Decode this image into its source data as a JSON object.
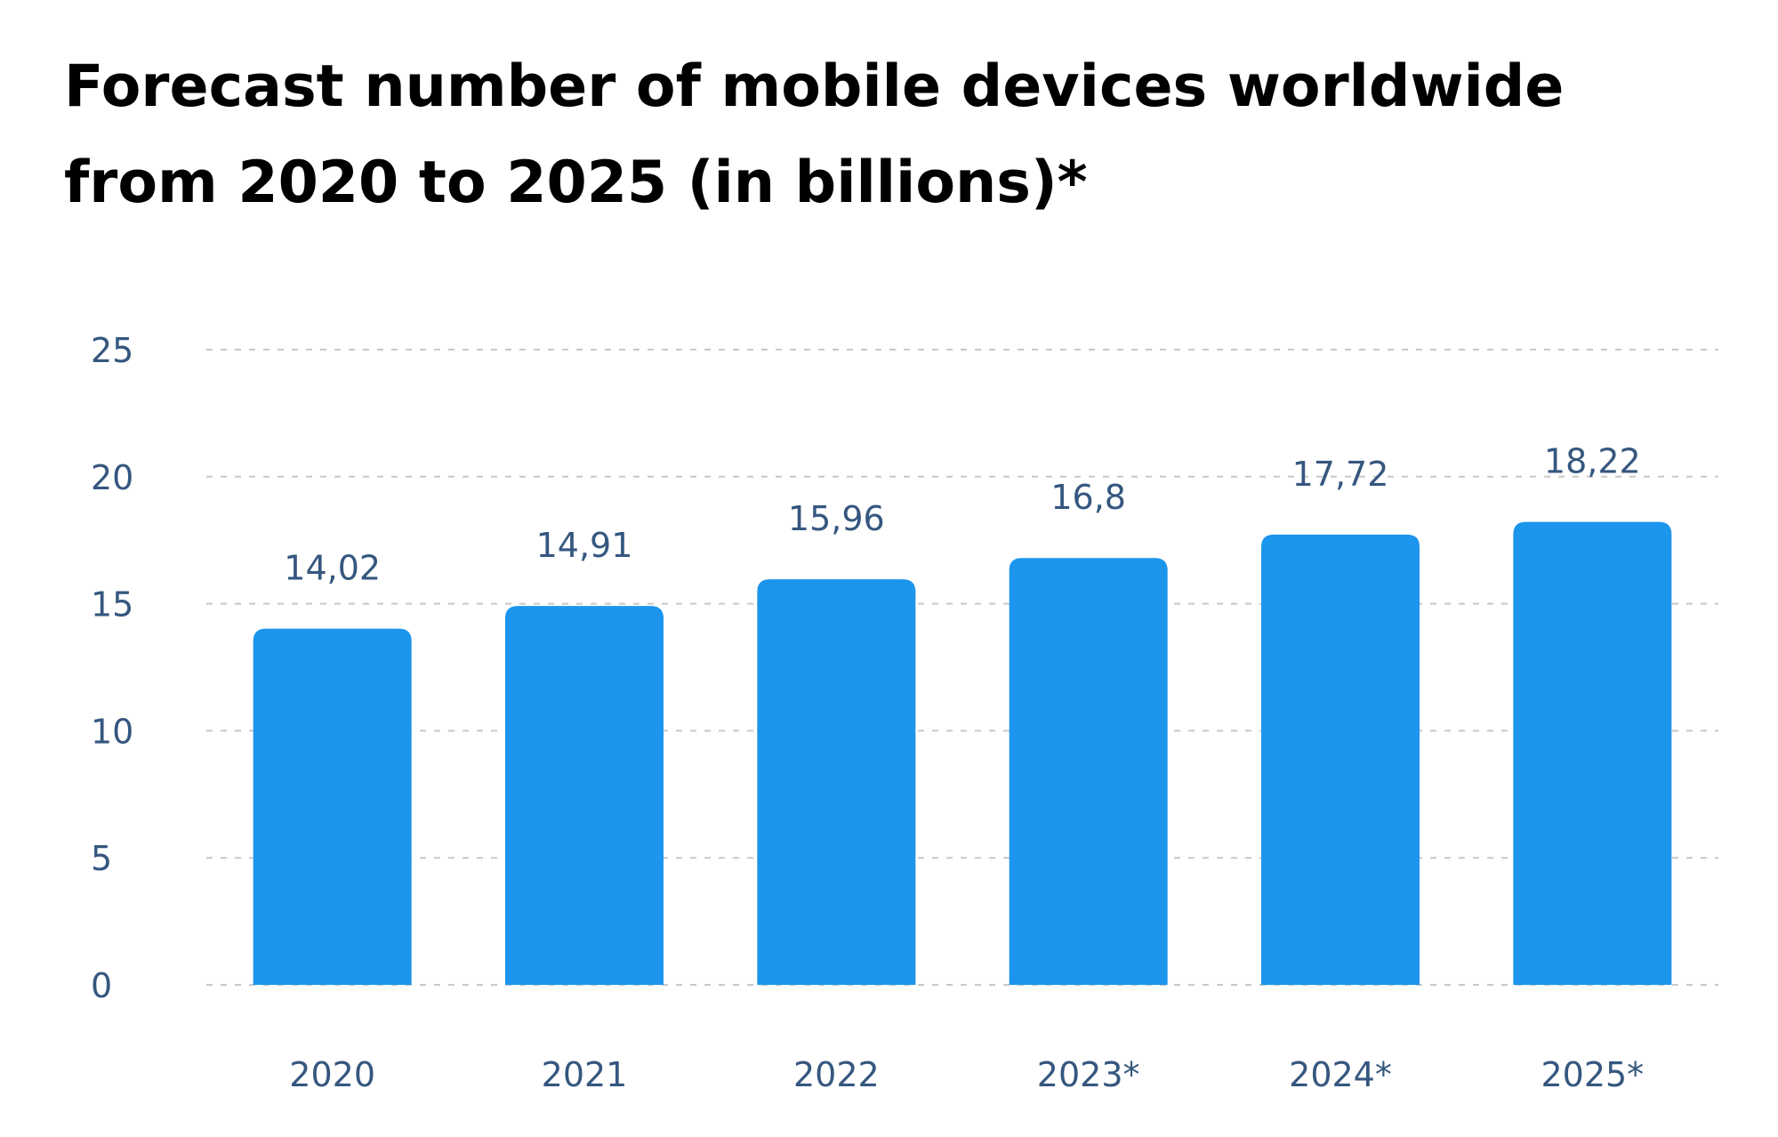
{
  "title": "Forecast number of mobile devices worldwide from 2020 to 2025 (in billions)*",
  "colors": {
    "bar": "#1c95ec",
    "label_text": "#35577f",
    "title_text": "#000000",
    "grid": "#c8c8c8"
  },
  "chart_data": {
    "type": "bar",
    "categories": [
      "2020",
      "2021",
      "2022",
      "2023*",
      "2024*",
      "2025*"
    ],
    "values": [
      14.02,
      14.91,
      15.96,
      16.8,
      17.72,
      18.22
    ],
    "data_labels": [
      "14,02",
      "14,91",
      "15,96",
      "16,8",
      "17,72",
      "18,22"
    ],
    "y_ticks": [
      0,
      5,
      10,
      15,
      20,
      25
    ],
    "y_tick_labels": [
      "0",
      "5",
      "10",
      "15",
      "20",
      "25"
    ],
    "ylim": [
      0,
      25
    ],
    "grid": true,
    "grid_style": "dashed horizontal",
    "legend": "none"
  }
}
